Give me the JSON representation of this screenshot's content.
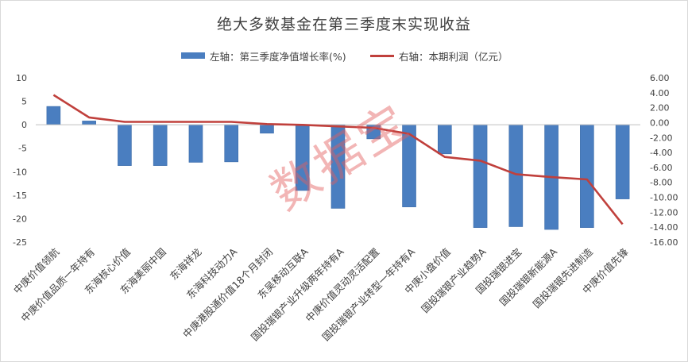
{
  "chart_data": {
    "type": "bar",
    "title": "绝大多数基金在第三季度末实现收益",
    "categories": [
      "中庚价值领航",
      "中庚价值品质一年持有",
      "东海核心价值",
      "东海美丽中国",
      "东海祥龙",
      "东海科技动力A",
      "中庚港股通价值18个月封闭",
      "东吴移动互联A",
      "国投瑞银产业升级两年持有A",
      "中庚价值灵动灵活配置",
      "国投瑞银产业转型一年持有A",
      "中庚小盘价值",
      "国投瑞银产业趋势A",
      "国投瑞银进宝",
      "国投瑞银新能源A",
      "国投瑞银先进制造",
      "中庚价值先锋"
    ],
    "series": [
      {
        "name": "左轴：第三季度净值增长率(%)",
        "type": "bar",
        "axis": "left",
        "color": "#4a7ec0",
        "values": [
          3.9,
          0.8,
          -8.7,
          -8.7,
          -8.0,
          -7.9,
          -1.8,
          -14.0,
          -17.8,
          -3.0,
          -17.5,
          -6.2,
          -21.9,
          -21.7,
          -22.3,
          -21.9,
          -15.8
        ]
      },
      {
        "name": "右轴：本期利润（亿元）",
        "type": "line",
        "axis": "right",
        "color": "#c0403c",
        "values": [
          3.7,
          0.7,
          0.1,
          0.1,
          0.1,
          0.1,
          -0.2,
          -0.3,
          -0.5,
          -0.7,
          -1.5,
          -4.6,
          -5.1,
          -6.9,
          -7.3,
          -7.6,
          -13.6
        ]
      }
    ],
    "y_left": {
      "min": -25,
      "max": 10,
      "ticks": [
        "10",
        "5",
        "0",
        "-5",
        "-10",
        "-15",
        "-20",
        "-25"
      ]
    },
    "y_right": {
      "min": -16,
      "max": 6,
      "ticks": [
        "6.00",
        "4.00",
        "2.00",
        "0.00",
        "-2.00",
        "-4.00",
        "-6.00",
        "-8.00",
        "-10.00",
        "-12.00",
        "-14.00",
        "-16.00"
      ]
    },
    "legend_position": "top",
    "grid": false
  },
  "watermark": "数据宝"
}
